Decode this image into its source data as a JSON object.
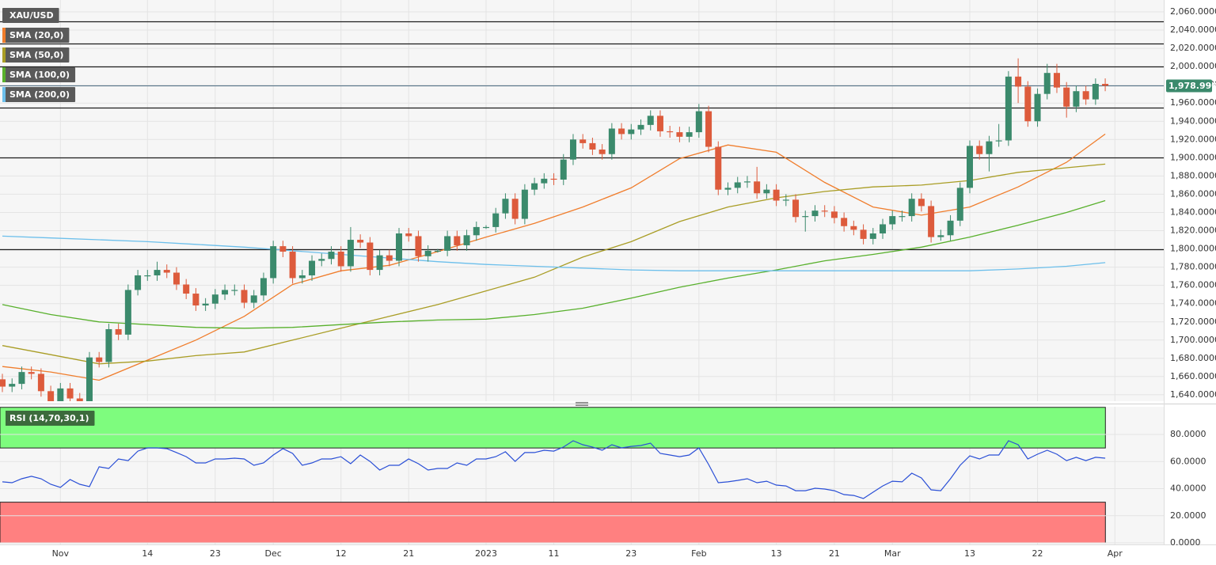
{
  "chart_data": [
    {
      "type": "candlestick",
      "name": "XAU/USD",
      "up_color": "#3b8a6c",
      "down_color": "#dd5b3c",
      "grid": true,
      "categories": [
        null,
        null,
        null,
        null,
        null,
        null,
        "Nov",
        null,
        null,
        null,
        null,
        null,
        null,
        null,
        null,
        "14",
        null,
        null,
        null,
        null,
        null,
        null,
        "23",
        null,
        null,
        null,
        null,
        null,
        "Dec",
        null,
        null,
        null,
        null,
        null,
        null,
        "12",
        null,
        null,
        null,
        null,
        null,
        null,
        "21",
        null,
        null,
        null,
        null,
        null,
        null,
        null,
        "2023",
        null,
        null,
        null,
        null,
        null,
        null,
        "11",
        null,
        null,
        null,
        null,
        null,
        null,
        null,
        "23",
        null,
        null,
        null,
        null,
        null,
        null,
        "Feb",
        null,
        null,
        null,
        null,
        null,
        null,
        null,
        "13",
        null,
        null,
        null,
        null,
        null,
        "21",
        null,
        null,
        null,
        null,
        null,
        "Mar",
        null,
        null,
        null,
        null,
        null,
        null,
        null,
        "13",
        null,
        null,
        null,
        null,
        null,
        null,
        "22",
        null,
        null,
        null,
        null,
        null,
        null,
        null,
        "Apr"
      ],
      "open": [
        1657,
        1649,
        1652,
        1665,
        1663,
        1644,
        1633,
        1647,
        1636,
        1629,
        1681,
        1676,
        1712,
        1706,
        1755,
        1771,
        1771,
        1777,
        1774,
        1761,
        1751,
        1738,
        1740,
        1750,
        1755,
        1755,
        1741,
        1749,
        1768,
        1803,
        1797,
        1768,
        1771,
        1787,
        1789,
        1797,
        1781,
        1810,
        1807,
        1777,
        1793,
        1787,
        1817,
        1814,
        1792,
        1798,
        1798,
        1814,
        1804,
        1815,
        1824,
        1824,
        1839,
        1855,
        1833,
        1865,
        1872,
        1877,
        1876,
        1898,
        1920,
        1916,
        1909,
        1904,
        1932,
        1926,
        1931,
        1936,
        1946,
        1929,
        1928,
        1923,
        1928,
        1951,
        1912,
        1865,
        1867,
        1873,
        1874,
        1861,
        1865,
        1853,
        1854,
        1835,
        1836,
        1842,
        1841,
        1834,
        1825,
        1821,
        1811,
        1817,
        1827,
        1836,
        1836,
        1855,
        1847,
        1813,
        1815,
        1831,
        1867,
        1913,
        1904,
        1918,
        1919,
        1989,
        1978,
        1940,
        1970,
        1993,
        1977,
        1956,
        1973,
        1964,
        1981,
        null
      ],
      "high": [
        1663,
        1658,
        1671,
        1671,
        1669,
        1650,
        1653,
        1653,
        1642,
        1687,
        1687,
        1718,
        1718,
        1761,
        1777,
        1777,
        1786,
        1783,
        1780,
        1767,
        1757,
        1746,
        1756,
        1761,
        1761,
        1761,
        1755,
        1774,
        1809,
        1809,
        1803,
        1777,
        1793,
        1795,
        1803,
        1803,
        1824,
        1816,
        1813,
        1799,
        1799,
        1823,
        1823,
        1820,
        1804,
        1800,
        1820,
        1820,
        1821,
        1830,
        1826,
        1845,
        1861,
        1861,
        1871,
        1878,
        1883,
        1883,
        1904,
        1926,
        1926,
        1922,
        1915,
        1938,
        1938,
        1937,
        1942,
        1952,
        1952,
        1935,
        1934,
        1934,
        1959,
        1957,
        1918,
        1873,
        1879,
        1880,
        1890,
        1871,
        1871,
        1860,
        1860,
        1842,
        1848,
        1848,
        1847,
        1840,
        1831,
        1827,
        1823,
        1833,
        1842,
        1842,
        1861,
        1861,
        1853,
        1821,
        1837,
        1873,
        1919,
        1919,
        1924,
        1937,
        1995,
        2009,
        1984,
        1976,
        2003,
        2003,
        1983,
        1979,
        1979,
        1987,
        1987,
        null
      ],
      "low": [
        1643,
        1643,
        1646,
        1657,
        1638,
        1627,
        1627,
        1630,
        1623,
        1623,
        1670,
        1670,
        1700,
        1700,
        1749,
        1765,
        1765,
        1768,
        1755,
        1745,
        1732,
        1732,
        1734,
        1744,
        1749,
        1735,
        1735,
        1743,
        1762,
        1791,
        1762,
        1762,
        1765,
        1781,
        1783,
        1775,
        1775,
        1801,
        1771,
        1771,
        1781,
        1781,
        1808,
        1786,
        1786,
        1796,
        1792,
        1798,
        1798,
        1809,
        1822,
        1818,
        1833,
        1827,
        1827,
        1859,
        1866,
        1870,
        1870,
        1892,
        1910,
        1903,
        1898,
        1898,
        1920,
        1920,
        1925,
        1930,
        1923,
        1922,
        1917,
        1917,
        1922,
        1906,
        1859,
        1859,
        1861,
        1867,
        1855,
        1855,
        1847,
        1847,
        1829,
        1819,
        1830,
        1835,
        1828,
        1819,
        1815,
        1805,
        1805,
        1811,
        1821,
        1830,
        1830,
        1841,
        1807,
        1809,
        1809,
        1825,
        1861,
        1898,
        1885,
        1912,
        1913,
        1960,
        1934,
        1934,
        1964,
        1971,
        1944,
        1950,
        1958,
        1958,
        1973,
        null
      ],
      "close": [
        1649,
        1652,
        1665,
        1663,
        1644,
        1633,
        1647,
        1636,
        1629,
        1681,
        1676,
        1712,
        1706,
        1755,
        1771,
        1771,
        1777,
        1774,
        1761,
        1751,
        1738,
        1740,
        1750,
        1755,
        1755,
        1741,
        1749,
        1768,
        1803,
        1797,
        1768,
        1771,
        1787,
        1789,
        1797,
        1781,
        1810,
        1807,
        1777,
        1793,
        1787,
        1817,
        1814,
        1792,
        1798,
        1798,
        1814,
        1804,
        1815,
        1824,
        1824,
        1839,
        1855,
        1833,
        1865,
        1872,
        1877,
        1876,
        1898,
        1920,
        1916,
        1909,
        1904,
        1932,
        1926,
        1931,
        1936,
        1946,
        1929,
        1928,
        1923,
        1928,
        1951,
        1912,
        1865,
        1867,
        1873,
        1874,
        1861,
        1865,
        1853,
        1854,
        1835,
        1836,
        1842,
        1841,
        1834,
        1825,
        1821,
        1811,
        1817,
        1827,
        1836,
        1836,
        1855,
        1847,
        1813,
        1815,
        1831,
        1867,
        1913,
        1904,
        1918,
        1919,
        1989,
        1978,
        1940,
        1970,
        1993,
        1977,
        1956,
        1973,
        1964,
        1981,
        1978.99,
        null
      ],
      "overlays": [
        {
          "name": "SMA (20,0)",
          "color": "#f07d2c",
          "x": [
            0,
            5,
            10,
            15,
            20,
            25,
            30,
            35,
            40,
            45,
            50,
            55,
            60,
            65,
            70,
            75,
            80,
            85,
            90,
            95,
            100,
            105,
            110,
            114
          ],
          "values": [
            1671,
            1665,
            1656,
            1678,
            1700,
            1726,
            1761,
            1776,
            1782,
            1797,
            1813,
            1828,
            1846,
            1867,
            1899,
            1914,
            1906,
            1873,
            1846,
            1837,
            1846,
            1868,
            1895,
            1926
          ]
        },
        {
          "name": "SMA (50,0)",
          "color": "#a99d25",
          "x": [
            0,
            5,
            10,
            15,
            20,
            25,
            30,
            35,
            40,
            45,
            50,
            55,
            60,
            65,
            70,
            75,
            80,
            85,
            90,
            95,
            100,
            105,
            110,
            114
          ],
          "values": [
            1694,
            1684,
            1674,
            1677,
            1683,
            1687,
            1700,
            1713,
            1726,
            1739,
            1754,
            1769,
            1791,
            1808,
            1830,
            1846,
            1856,
            1863,
            1868,
            1870,
            1875,
            1884,
            1889,
            1893
          ]
        },
        {
          "name": "SMA (100,0)",
          "color": "#58b02c",
          "x": [
            0,
            5,
            10,
            15,
            20,
            25,
            30,
            35,
            40,
            45,
            50,
            55,
            60,
            65,
            70,
            75,
            80,
            85,
            90,
            95,
            100,
            105,
            110,
            114
          ],
          "values": [
            1739,
            1728,
            1720,
            1717,
            1714,
            1713,
            1714,
            1717,
            1720,
            1722,
            1723,
            1728,
            1735,
            1746,
            1758,
            1768,
            1777,
            1787,
            1794,
            1802,
            1813,
            1826,
            1840,
            1853
          ]
        },
        {
          "name": "SMA (200,0)",
          "color": "#6cbfeb",
          "x": [
            0,
            5,
            10,
            15,
            20,
            25,
            30,
            35,
            40,
            45,
            50,
            55,
            60,
            65,
            70,
            75,
            80,
            85,
            90,
            95,
            100,
            105,
            110,
            114
          ],
          "values": [
            1814,
            1812,
            1810,
            1808,
            1805,
            1802,
            1798,
            1794,
            1790,
            1786,
            1783,
            1781,
            1779,
            1777,
            1776,
            1776,
            1776,
            1776,
            1776,
            1776,
            1776,
            1778,
            1781,
            1785
          ]
        }
      ],
      "hlines": [
        2050,
        2025,
        2000,
        1955,
        1900,
        1800
      ],
      "last_price": {
        "value": 1978.99,
        "label": "1,978.9900"
      },
      "ylim": [
        1633,
        2073
      ],
      "yticks": [
        {
          "value": 1640,
          "label": "1,640.0000"
        },
        {
          "value": 1660,
          "label": "1,660.0000"
        },
        {
          "value": 1680,
          "label": "1,680.0000"
        },
        {
          "value": 1700,
          "label": "1,700.0000"
        },
        {
          "value": 1720,
          "label": "1,720.0000"
        },
        {
          "value": 1740,
          "label": "1,740.0000"
        },
        {
          "value": 1760,
          "label": "1,760.0000"
        },
        {
          "value": 1780,
          "label": "1,780.0000"
        },
        {
          "value": 1800,
          "label": "1,800.0000"
        },
        {
          "value": 1820,
          "label": "1,820.0000"
        },
        {
          "value": 1840,
          "label": "1,840.0000"
        },
        {
          "value": 1860,
          "label": "1,860.0000"
        },
        {
          "value": 1880,
          "label": "1,880.0000"
        },
        {
          "value": 1900,
          "label": "1,900.0000"
        },
        {
          "value": 1920,
          "label": "1,920.0000"
        },
        {
          "value": 1940,
          "label": "1,940.0000"
        },
        {
          "value": 1960,
          "label": "1,960.0000"
        },
        {
          "value": 1980,
          "label": "1,980.0000"
        },
        {
          "value": 2000,
          "label": "2,000.0000"
        },
        {
          "value": 2020,
          "label": "2,020.0000"
        },
        {
          "value": 2040,
          "label": "2,040.0000"
        },
        {
          "value": 2060,
          "label": "2,060.0000"
        }
      ]
    },
    {
      "type": "line",
      "title": "RSI (14,70,30,1)",
      "color": "#2a4fd6",
      "grid": true,
      "bands": [
        {
          "from": 70,
          "to": 100,
          "color": "#7efc7e"
        },
        {
          "from": 0,
          "to": 30,
          "color": "#ff8080"
        }
      ],
      "values": [
        45.0,
        44.4,
        47.3,
        49.1,
        47.3,
        43.2,
        40.9,
        46.7,
        43.2,
        41.5,
        56.1,
        54.9,
        61.9,
        60.7,
        67.7,
        70.1,
        70.1,
        69.5,
        66.6,
        63.6,
        59.0,
        59.0,
        61.9,
        61.9,
        62.5,
        61.9,
        57.2,
        59.0,
        64.8,
        69.5,
        66.0,
        57.2,
        59.0,
        61.9,
        61.9,
        63.6,
        58.4,
        64.8,
        60.1,
        53.7,
        57.2,
        57.2,
        61.9,
        58.4,
        53.7,
        54.9,
        54.9,
        59.0,
        57.2,
        61.9,
        61.9,
        63.6,
        67.2,
        60.1,
        66.6,
        66.6,
        68.3,
        67.7,
        70.7,
        75.3,
        72.4,
        70.7,
        68.3,
        72.4,
        70.1,
        71.2,
        71.8,
        73.6,
        66.0,
        64.8,
        63.6,
        64.8,
        70.1,
        57.8,
        44.4,
        45.0,
        46.1,
        47.3,
        44.4,
        45.5,
        42.6,
        42.0,
        38.5,
        38.5,
        40.3,
        39.7,
        38.5,
        35.6,
        35.0,
        32.7,
        37.4,
        42.0,
        45.5,
        45.0,
        51.4,
        47.9,
        39.1,
        38.5,
        47.3,
        57.2,
        64.2,
        61.9,
        64.8,
        64.8,
        75.3,
        72.4,
        61.9,
        65.4,
        68.3,
        65.4,
        60.7,
        63.1,
        60.7,
        63.1,
        62.5,
        null
      ],
      "ylim": [
        0,
        100
      ],
      "yticks": [
        {
          "value": 0,
          "label": "0.0000"
        },
        {
          "value": 20,
          "label": "20.0000"
        },
        {
          "value": 40,
          "label": "40.0000"
        },
        {
          "value": 60,
          "label": "60.0000"
        },
        {
          "value": 80,
          "label": "80.0000"
        }
      ]
    }
  ]
}
